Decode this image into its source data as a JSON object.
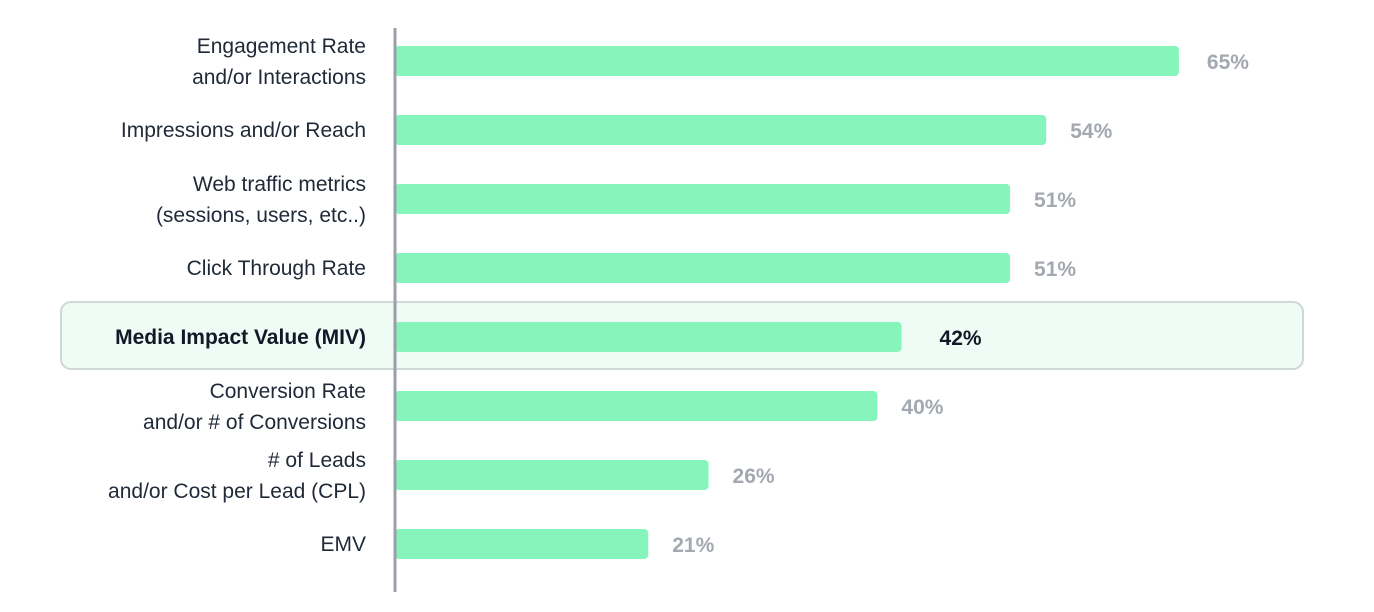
{
  "chart_data": {
    "type": "bar",
    "orientation": "horizontal",
    "categories": [
      [
        "Engagement Rate",
        "and/or Interactions"
      ],
      [
        "Impressions and/or Reach"
      ],
      [
        "Web traffic metrics",
        "(sessions, users, etc..)"
      ],
      [
        "Click Through Rate"
      ],
      [
        "Media Impact Value (MIV)"
      ],
      [
        "Conversion Rate",
        "and/or # of Conversions"
      ],
      [
        "# of Leads",
        "and/or Cost per Lead (CPL)"
      ],
      [
        "EMV"
      ]
    ],
    "values": [
      65,
      54,
      51,
      51,
      42,
      40,
      26,
      21
    ],
    "value_labels": [
      "65%",
      "54%",
      "51%",
      "51%",
      "42%",
      "40%",
      "26%",
      "21%"
    ],
    "highlight_index": 4,
    "xlim": [
      0,
      100
    ],
    "grid": false,
    "colors": {
      "bar": "#86f5bc",
      "axis": "#9aa0aa",
      "value_label": "#a3a8b1",
      "highlight_value_label": "#111827",
      "highlight_fill": "#effcf5",
      "highlight_border": "#cfd8d3"
    }
  }
}
